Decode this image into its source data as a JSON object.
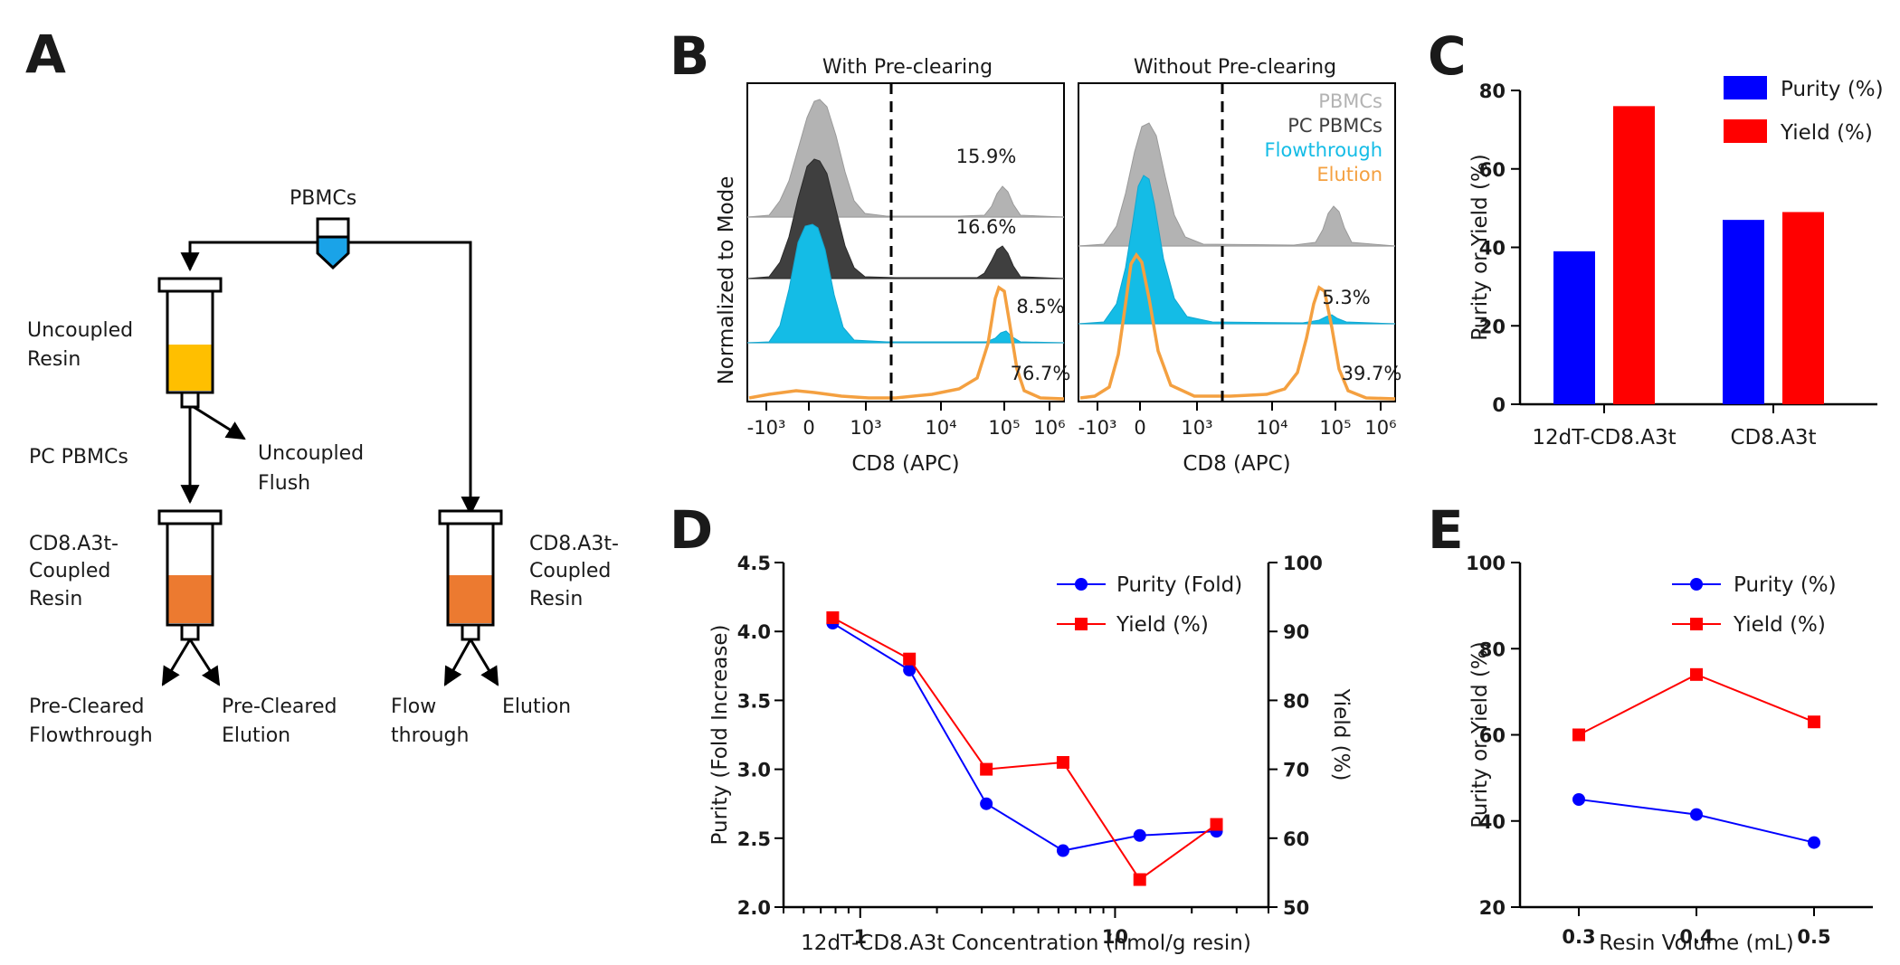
{
  "panel_labels": [
    "A",
    "B",
    "C",
    "D",
    "E"
  ],
  "colors": {
    "blue": "#0000ff",
    "red": "#ff0000",
    "cyan": "#14bce6",
    "orange": "#f4a040",
    "light_gray": "#b3b3b3",
    "dark_gray": "#3f3f3f",
    "yellow_resin": "#ffbf00",
    "orange_resin": "#ec7a30",
    "tube_blue": "#1aa3e8"
  },
  "diagram": {
    "pbmcs": "PBMCs",
    "uncoupled_resin": [
      "Uncoupled",
      "Resin"
    ],
    "pc_pbmcs": "PC PBMCs",
    "uncoupled_flush": [
      "Uncoupled",
      "Flush"
    ],
    "coupled_left": [
      "CD8.A3t-",
      "Coupled",
      "Resin"
    ],
    "coupled_right": [
      "CD8.A3t-",
      "Coupled",
      "Resin"
    ],
    "pc_flowthrough": [
      "Pre-Cleared",
      "Flowthrough"
    ],
    "pc_elution": [
      "Pre-Cleared",
      "Elution"
    ],
    "flow_through": [
      "Flow",
      "through"
    ],
    "elution": "Elution"
  },
  "chart_data": [
    {
      "panel": "B",
      "type": "histogram",
      "ylabel": "Normalized to Mode",
      "facets": [
        {
          "title": "With Pre-clearing",
          "xlabel": "CD8 (APC)",
          "tick_labels": [
            "-10³",
            "0",
            "10³",
            "10⁴",
            "10⁵",
            "10⁶"
          ],
          "percentages": [
            "15.9%",
            "16.6%",
            "8.5%",
            "76.7%"
          ]
        },
        {
          "title": "Without Pre-clearing",
          "xlabel": "CD8 (APC)",
          "tick_labels": [
            "-10³",
            "0",
            "10³",
            "10⁴",
            "10⁵",
            "10⁶"
          ],
          "percentages": [
            "5.3%",
            "39.7%"
          ]
        }
      ],
      "legend": [
        "PBMCs",
        "PC PBMCs",
        "Flowthrough",
        "Elution"
      ]
    },
    {
      "panel": "C",
      "type": "bar",
      "categories": [
        "12dT-CD8.A3t",
        "CD8.A3t"
      ],
      "series": [
        {
          "name": "Purity (%)",
          "values": [
            39,
            47
          ]
        },
        {
          "name": "Yield (%)",
          "values": [
            76,
            49
          ]
        }
      ],
      "ylabel": "Purity or Yield (%)",
      "ylim": [
        0,
        80
      ],
      "yticks": [
        0,
        20,
        40,
        60,
        80
      ]
    },
    {
      "panel": "D",
      "type": "line",
      "xlabel": "12dT-CD8.A3t Concentration (nmol/g resin)",
      "xscale": "log",
      "x": [
        0.78,
        1.56,
        3.125,
        6.25,
        12.5,
        25
      ],
      "xtick_labels": [
        "1",
        "10"
      ],
      "series": [
        {
          "name": "Purity (Fold)",
          "axis": "left",
          "values": [
            4.06,
            3.72,
            2.75,
            2.41,
            2.52,
            2.55
          ]
        },
        {
          "name": "Yield (%)",
          "axis": "right",
          "values": [
            92,
            86,
            70,
            71,
            54,
            62
          ]
        }
      ],
      "ylabel_left": "Purity (Fold  Increase)",
      "ylabel_right": "Yield (%)",
      "ylim_left": [
        2.0,
        4.5
      ],
      "ylim_right": [
        50,
        100
      ],
      "yticks_left": [
        "2.0",
        "2.5",
        "3.0",
        "3.5",
        "4.0",
        "4.5"
      ],
      "yticks_right": [
        "50",
        "60",
        "70",
        "80",
        "90",
        "100"
      ]
    },
    {
      "panel": "E",
      "type": "line",
      "xlabel": "Resin  Volume (mL)",
      "x": [
        0.3,
        0.4,
        0.5
      ],
      "xtick_labels": [
        "0.3",
        "0.4",
        "0.5"
      ],
      "series": [
        {
          "name": "Purity (%)",
          "values": [
            45,
            41.5,
            35
          ]
        },
        {
          "name": "Yield (%)",
          "values": [
            60,
            74,
            63
          ]
        }
      ],
      "ylabel": "Purity or Yield (%)",
      "ylim": [
        20,
        100
      ],
      "yticks": [
        20,
        40,
        60,
        80,
        100
      ]
    }
  ]
}
